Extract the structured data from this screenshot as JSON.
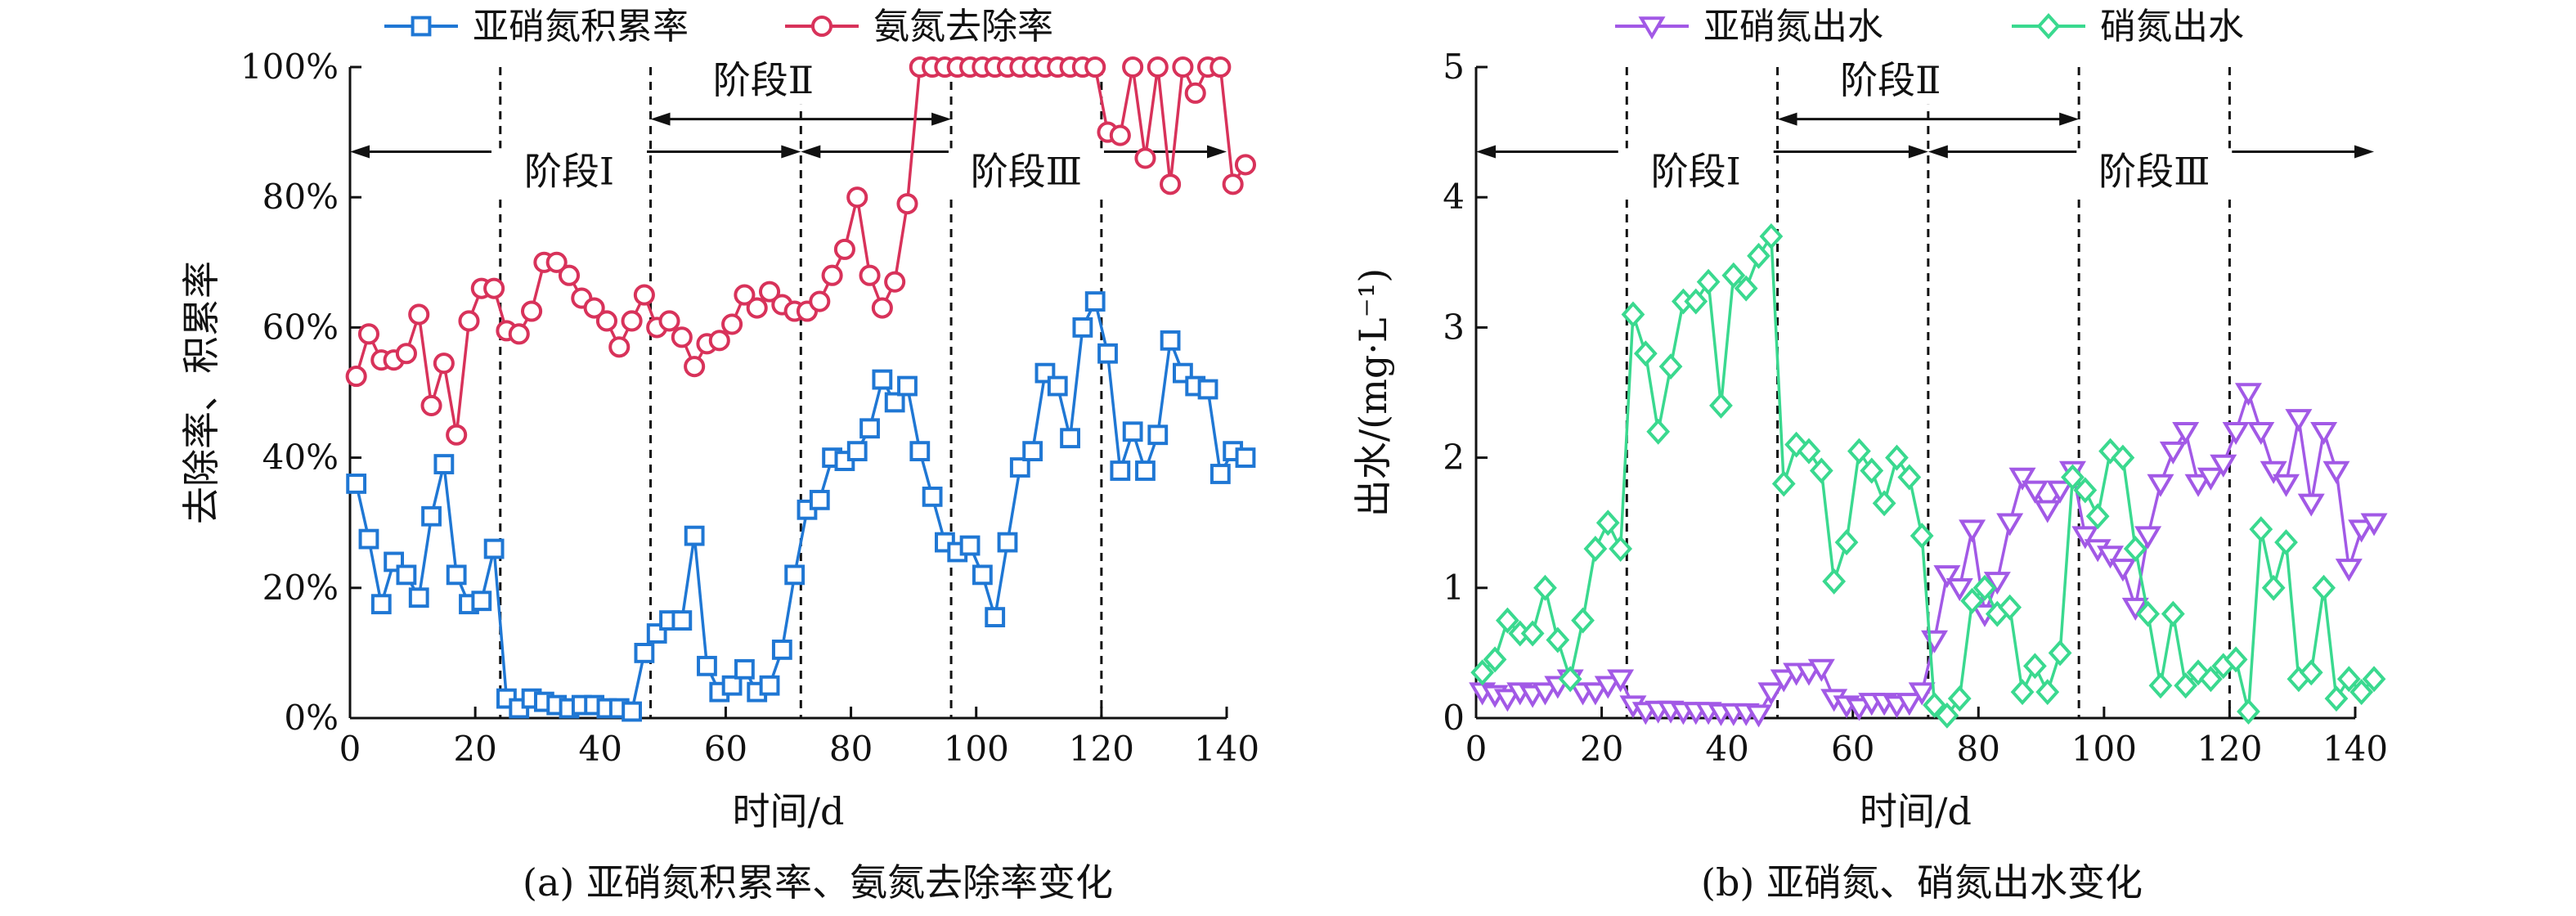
{
  "chart_data": [
    {
      "type": "line",
      "caption": "(a) 亚硝氮积累率、氨氮去除率变化",
      "xlabel": "时间/d",
      "ylabel": "去除率、积累率",
      "xlim": [
        0,
        140
      ],
      "ylim": [
        0,
        100
      ],
      "xticks": [
        0,
        20,
        40,
        60,
        80,
        100,
        120,
        140
      ],
      "yticks": [
        0,
        20,
        40,
        60,
        80,
        100
      ],
      "ytick_labels": [
        "0%",
        "20%",
        "40%",
        "60%",
        "80%",
        "100%"
      ],
      "grid": false,
      "legend_position": "top",
      "stage_lines": [
        24,
        48,
        72,
        96,
        120
      ],
      "stages": [
        {
          "label": "阶段Ⅰ",
          "x_label": 35,
          "y_label": 82,
          "arrow_from": 0,
          "arrow_to": 72,
          "arrow_y": 87
        },
        {
          "label": "阶段Ⅱ",
          "x_label": 66,
          "y_label": 96,
          "arrow_from": 48,
          "arrow_to": 96,
          "arrow_y": 92
        },
        {
          "label": "阶段Ⅲ",
          "x_label": 108,
          "y_label": 82,
          "arrow_from": 72,
          "arrow_to": 140,
          "arrow_y": 87
        }
      ],
      "series": [
        {
          "name": "亚硝氮积累率",
          "color": "#1f77d4",
          "marker": "square",
          "x": [
            1,
            3,
            5,
            7,
            9,
            11,
            13,
            15,
            17,
            19,
            21,
            23,
            25,
            27,
            29,
            31,
            33,
            35,
            37,
            39,
            41,
            43,
            45,
            47,
            49,
            51,
            53,
            55,
            57,
            59,
            61,
            63,
            65,
            67,
            69,
            71,
            73,
            75,
            77,
            79,
            81,
            83,
            85,
            87,
            89,
            91,
            93,
            95,
            97,
            99,
            101,
            103,
            105,
            107,
            109,
            111,
            113,
            115,
            117,
            119,
            121,
            123,
            125,
            127,
            129,
            131,
            133,
            135,
            137,
            139,
            141,
            143
          ],
          "values": [
            36,
            27.5,
            17.5,
            24,
            22,
            18.5,
            31,
            39,
            22,
            17.5,
            18,
            26,
            3,
            1.5,
            3,
            2.5,
            2,
            1.5,
            2,
            2,
            1.5,
            1.5,
            1,
            10,
            13,
            15,
            15,
            28,
            8,
            4,
            5,
            7.5,
            4,
            5,
            10.5,
            22,
            32,
            33.5,
            40,
            39.5,
            41,
            44.5,
            52,
            48.5,
            51,
            41,
            34,
            27,
            25.5,
            26.5,
            22,
            15.5,
            27,
            38.5,
            41,
            53,
            51,
            43,
            60,
            64,
            56,
            38,
            44,
            38,
            43.5,
            58,
            53,
            51,
            50.5,
            37.5,
            41,
            40
          ]
        },
        {
          "name": "氨氮去除率",
          "color": "#d8325a",
          "marker": "circle",
          "x": [
            1,
            3,
            5,
            7,
            9,
            11,
            13,
            15,
            17,
            19,
            21,
            23,
            25,
            27,
            29,
            31,
            33,
            35,
            37,
            39,
            41,
            43,
            45,
            47,
            49,
            51,
            53,
            55,
            57,
            59,
            61,
            63,
            65,
            67,
            69,
            71,
            73,
            75,
            77,
            79,
            81,
            83,
            85,
            87,
            89,
            91,
            93,
            95,
            97,
            99,
            101,
            103,
            105,
            107,
            109,
            111,
            113,
            115,
            117,
            119,
            121,
            123,
            125,
            127,
            129,
            131,
            133,
            135,
            137,
            139,
            141,
            143
          ],
          "values": [
            52.5,
            59,
            55,
            55,
            56,
            62,
            48,
            54.5,
            43.5,
            61,
            66,
            66,
            59.5,
            59,
            62.5,
            70,
            70,
            68,
            64.5,
            63,
            61,
            57,
            61,
            65,
            60,
            61,
            58.5,
            54,
            57.5,
            58,
            60.5,
            65,
            63,
            65.5,
            63.5,
            62.5,
            62.5,
            64,
            68,
            72,
            80,
            68,
            63,
            67,
            79,
            100,
            100,
            100,
            100,
            100,
            100,
            100,
            100,
            100,
            100,
            100,
            100,
            100,
            100,
            100,
            90,
            89.5,
            100,
            86,
            100,
            82,
            100,
            96,
            100,
            100,
            82,
            85
          ]
        }
      ]
    },
    {
      "type": "line",
      "caption": "(b) 亚硝氮、硝氮出水变化",
      "xlabel": "时间/d",
      "ylabel": "出水/(mg·L⁻¹)",
      "xlim": [
        0,
        140
      ],
      "ylim": [
        0,
        5
      ],
      "xticks": [
        0,
        20,
        40,
        60,
        80,
        100,
        120,
        140
      ],
      "yticks": [
        0,
        1,
        2,
        3,
        4,
        5
      ],
      "ytick_labels": [
        "0",
        "1",
        "2",
        "3",
        "4",
        "5"
      ],
      "grid": false,
      "legend_position": "top",
      "stage_lines": [
        24,
        48,
        72,
        96,
        120
      ],
      "stages": [
        {
          "label": "阶段Ⅰ",
          "x_label": 35,
          "y_label": 4.1,
          "arrow_from": 0,
          "arrow_to": 72,
          "arrow_y": 4.35
        },
        {
          "label": "阶段Ⅱ",
          "x_label": 66,
          "y_label": 4.8,
          "arrow_from": 48,
          "arrow_to": 96,
          "arrow_y": 4.6
        },
        {
          "label": "阶段Ⅲ",
          "x_label": 108,
          "y_label": 4.1,
          "arrow_from": 72,
          "arrow_to": 143,
          "arrow_y": 4.35
        }
      ],
      "series": [
        {
          "name": "亚硝氮出水",
          "color": "#a259e6",
          "marker": "triangle-down",
          "x": [
            1,
            3,
            5,
            7,
            9,
            11,
            13,
            15,
            17,
            19,
            21,
            23,
            25,
            27,
            29,
            31,
            33,
            35,
            37,
            39,
            41,
            43,
            45,
            47,
            49,
            51,
            53,
            55,
            57,
            59,
            61,
            63,
            65,
            67,
            69,
            71,
            73,
            75,
            77,
            79,
            81,
            83,
            85,
            87,
            89,
            91,
            93,
            95,
            97,
            99,
            101,
            103,
            105,
            107,
            109,
            111,
            113,
            115,
            117,
            119,
            121,
            123,
            125,
            127,
            129,
            131,
            133,
            135,
            137,
            139,
            141,
            143
          ],
          "values": [
            0.2,
            0.18,
            0.15,
            0.2,
            0.18,
            0.2,
            0.25,
            0.3,
            0.2,
            0.2,
            0.25,
            0.3,
            0.1,
            0.05,
            0.06,
            0.06,
            0.05,
            0.05,
            0.05,
            0.04,
            0.04,
            0.04,
            0.03,
            0.2,
            0.3,
            0.35,
            0.35,
            0.38,
            0.15,
            0.1,
            0.08,
            0.12,
            0.12,
            0.1,
            0.12,
            0.2,
            0.6,
            1.1,
            1.0,
            1.45,
            0.8,
            1.05,
            1.5,
            1.85,
            1.75,
            1.6,
            1.75,
            1.9,
            1.4,
            1.3,
            1.25,
            1.15,
            0.85,
            1.4,
            1.8,
            2.05,
            2.2,
            1.8,
            1.85,
            1.95,
            2.2,
            2.5,
            2.2,
            1.9,
            1.8,
            2.3,
            1.65,
            2.2,
            1.9,
            1.15,
            1.45,
            1.5
          ]
        },
        {
          "name": "硝氮出水",
          "color": "#3ad98f",
          "marker": "diamond",
          "x": [
            1,
            3,
            5,
            7,
            9,
            11,
            13,
            15,
            17,
            19,
            21,
            23,
            25,
            27,
            29,
            31,
            33,
            35,
            37,
            39,
            41,
            43,
            45,
            47,
            49,
            51,
            53,
            55,
            57,
            59,
            61,
            63,
            65,
            67,
            69,
            71,
            73,
            75,
            77,
            79,
            81,
            83,
            85,
            87,
            89,
            91,
            93,
            95,
            97,
            99,
            101,
            103,
            105,
            107,
            109,
            111,
            113,
            115,
            117,
            119,
            121,
            123,
            125,
            127,
            129,
            131,
            133,
            135,
            137,
            139,
            141,
            143
          ],
          "values": [
            0.35,
            0.45,
            0.75,
            0.65,
            0.65,
            1.0,
            0.6,
            0.3,
            0.75,
            1.3,
            1.5,
            1.3,
            3.1,
            2.8,
            2.2,
            2.7,
            3.2,
            3.2,
            3.35,
            2.4,
            3.4,
            3.3,
            3.55,
            3.7,
            1.8,
            2.1,
            2.05,
            1.9,
            1.05,
            1.35,
            2.05,
            1.9,
            1.65,
            2.0,
            1.85,
            1.4,
            0.1,
            0.02,
            0.15,
            0.9,
            1.0,
            0.8,
            0.85,
            0.2,
            0.4,
            0.2,
            0.5,
            1.85,
            1.75,
            1.55,
            2.05,
            2.0,
            1.3,
            0.8,
            0.25,
            0.8,
            0.25,
            0.35,
            0.3,
            0.4,
            0.45,
            0.05,
            1.45,
            1.0,
            1.35,
            0.3,
            0.35,
            1.0,
            0.15,
            0.3,
            0.2,
            0.3
          ]
        }
      ]
    }
  ]
}
